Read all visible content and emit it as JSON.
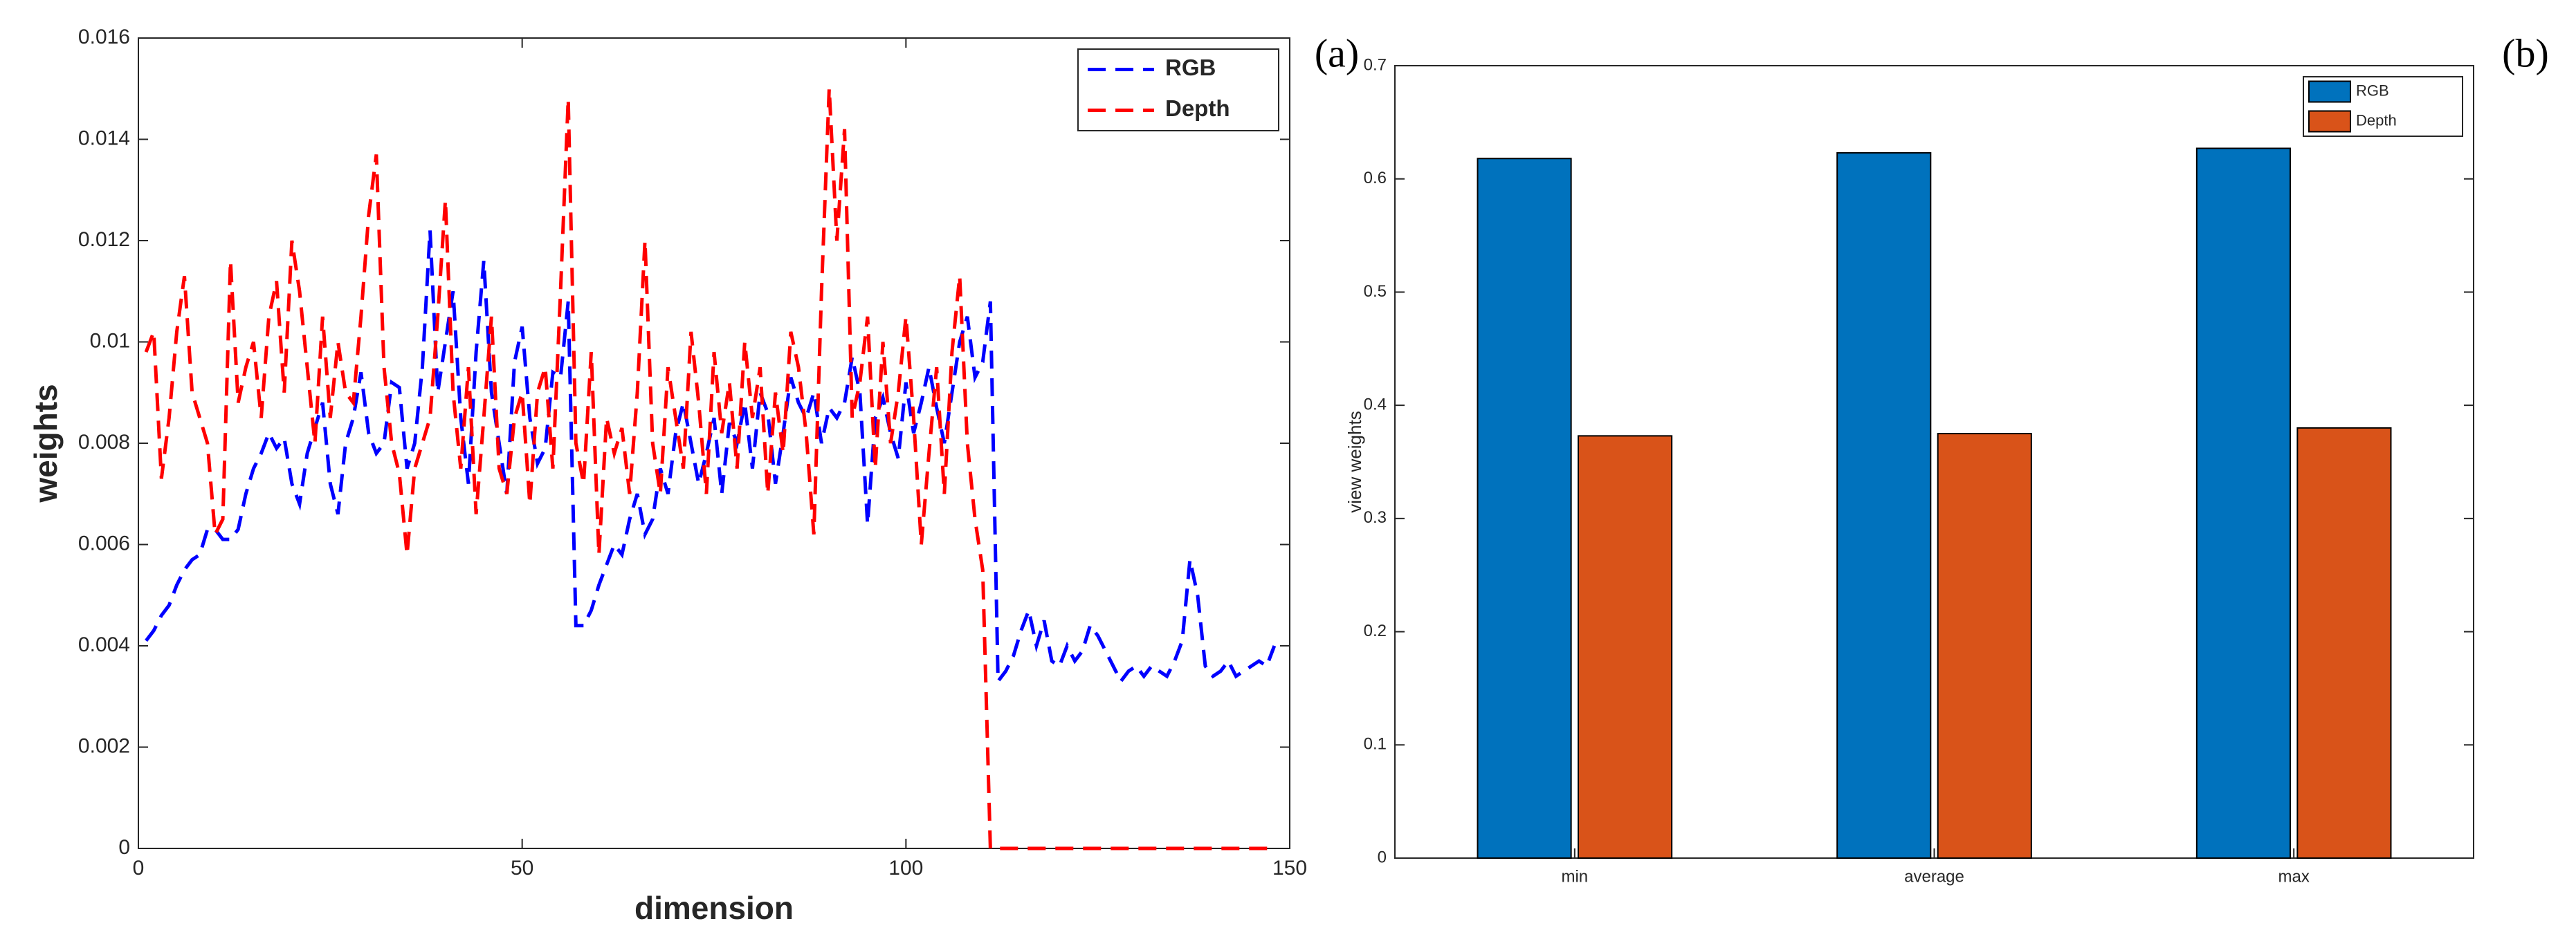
{
  "chart_data": [
    {
      "type": "line",
      "panel_label": "(a)",
      "xlabel": "dimension",
      "ylabel": "weights",
      "x": [
        1,
        2,
        3,
        4,
        5,
        6,
        7,
        8,
        9,
        10,
        11,
        12,
        13,
        14,
        15,
        16,
        17,
        18,
        19,
        20,
        21,
        22,
        23,
        24,
        25,
        26,
        27,
        28,
        29,
        30,
        31,
        32,
        33,
        34,
        35,
        36,
        37,
        38,
        39,
        40,
        41,
        42,
        43,
        44,
        45,
        46,
        47,
        48,
        49,
        50,
        51,
        52,
        53,
        54,
        55,
        56,
        57,
        58,
        59,
        60,
        61,
        62,
        63,
        64,
        65,
        66,
        67,
        68,
        69,
        70,
        71,
        72,
        73,
        74,
        75,
        76,
        77,
        78,
        79,
        80,
        81,
        82,
        83,
        84,
        85,
        86,
        87,
        88,
        89,
        90,
        91,
        92,
        93,
        94,
        95,
        96,
        97,
        98,
        99,
        100,
        101,
        102,
        103,
        104,
        105,
        106,
        107,
        108,
        109,
        110,
        111,
        112,
        113,
        114,
        115,
        116,
        117,
        118,
        119,
        120,
        121,
        122,
        123,
        124,
        125,
        126,
        127,
        128,
        129,
        130,
        131,
        132,
        133,
        134,
        135,
        136,
        137,
        138,
        139,
        140,
        141,
        142,
        143,
        144,
        145,
        146,
        147,
        148
      ],
      "series": [
        {
          "name": "RGB",
          "color": "#0000ff",
          "values": [
            0.0041,
            0.0043,
            0.0046,
            0.0048,
            0.0052,
            0.0055,
            0.0057,
            0.0058,
            0.0063,
            0.0063,
            0.0061,
            0.0061,
            0.0063,
            0.007,
            0.0075,
            0.0078,
            0.0082,
            0.0079,
            0.0081,
            0.0072,
            0.0068,
            0.0078,
            0.0083,
            0.0088,
            0.0072,
            0.0066,
            0.008,
            0.0085,
            0.0094,
            0.0082,
            0.0078,
            0.008,
            0.0092,
            0.0091,
            0.0075,
            0.008,
            0.0095,
            0.0122,
            0.009,
            0.01,
            0.011,
            0.0085,
            0.0072,
            0.0098,
            0.0116,
            0.009,
            0.008,
            0.007,
            0.0096,
            0.0103,
            0.0085,
            0.0076,
            0.0079,
            0.0094,
            0.0093,
            0.0108,
            0.0044,
            0.0044,
            0.0047,
            0.0052,
            0.0056,
            0.006,
            0.0058,
            0.0065,
            0.007,
            0.0062,
            0.0065,
            0.0075,
            0.007,
            0.0082,
            0.0088,
            0.008,
            0.0072,
            0.0078,
            0.0085,
            0.007,
            0.0084,
            0.008,
            0.0088,
            0.0075,
            0.009,
            0.0086,
            0.0072,
            0.0082,
            0.0093,
            0.0088,
            0.0085,
            0.009,
            0.008,
            0.0087,
            0.0085,
            0.0088,
            0.0097,
            0.009,
            0.0064,
            0.0085,
            0.0089,
            0.0082,
            0.0077,
            0.0092,
            0.0082,
            0.0088,
            0.0095,
            0.0087,
            0.008,
            0.009,
            0.01,
            0.0105,
            0.0093,
            0.0096,
            0.0108,
            0.0033,
            0.0035,
            0.0038,
            0.0043,
            0.0047,
            0.004,
            0.0045,
            0.0037,
            0.0036,
            0.004,
            0.0037,
            0.0039,
            0.0044,
            0.0042,
            0.0039,
            0.0036,
            0.0033,
            0.0035,
            0.0036,
            0.0034,
            0.0036,
            0.0035,
            0.0034,
            0.0037,
            0.0041,
            0.0057,
            0.005,
            0.0036,
            0.0034,
            0.0035,
            0.0037,
            0.0034,
            0.0035,
            0.0036,
            0.0037,
            0.0036,
            0.004
          ]
        },
        {
          "name": "Depth",
          "color": "#ff0000",
          "values": [
            0.0098,
            0.0102,
            0.0073,
            0.0085,
            0.0102,
            0.0113,
            0.009,
            0.0085,
            0.008,
            0.0062,
            0.0065,
            0.0116,
            0.0088,
            0.0095,
            0.01,
            0.0085,
            0.0105,
            0.0112,
            0.009,
            0.012,
            0.011,
            0.0095,
            0.008,
            0.0105,
            0.0085,
            0.01,
            0.009,
            0.0088,
            0.0105,
            0.0125,
            0.0137,
            0.0095,
            0.008,
            0.0074,
            0.0058,
            0.0075,
            0.008,
            0.0085,
            0.0105,
            0.0128,
            0.009,
            0.0075,
            0.0095,
            0.0066,
            0.0085,
            0.0105,
            0.0075,
            0.007,
            0.0085,
            0.009,
            0.0068,
            0.009,
            0.0095,
            0.0075,
            0.011,
            0.0148,
            0.008,
            0.0072,
            0.0098,
            0.0058,
            0.0085,
            0.0078,
            0.0083,
            0.007,
            0.009,
            0.012,
            0.008,
            0.007,
            0.0095,
            0.0085,
            0.0075,
            0.0102,
            0.0088,
            0.007,
            0.0098,
            0.0082,
            0.0092,
            0.0075,
            0.01,
            0.0085,
            0.0095,
            0.007,
            0.009,
            0.0078,
            0.0102,
            0.0095,
            0.0082,
            0.0062,
            0.011,
            0.015,
            0.012,
            0.0142,
            0.0085,
            0.0092,
            0.0105,
            0.0075,
            0.01,
            0.008,
            0.009,
            0.0105,
            0.0085,
            0.006,
            0.0078,
            0.0095,
            0.007,
            0.0098,
            0.0113,
            0.008,
            0.0065,
            0.0055,
            0,
            0,
            0,
            0,
            0,
            0,
            0,
            0,
            0,
            0,
            0,
            0,
            0,
            0,
            0,
            0,
            0,
            0,
            0,
            0,
            0,
            0,
            0,
            0,
            0,
            0,
            0,
            0,
            0,
            0,
            0,
            0,
            0,
            0,
            0,
            0,
            0,
            0
          ]
        }
      ],
      "xlim": [
        0,
        150
      ],
      "xticks": [
        0,
        50,
        100,
        150
      ],
      "ylim": [
        0,
        0.016
      ],
      "yticks": [
        0,
        0.002,
        0.004,
        0.006,
        0.008,
        0.01,
        0.012,
        0.014,
        0.016
      ],
      "legend": "upper right"
    },
    {
      "type": "bar",
      "panel_label": "(b)",
      "ylabel": "view weights",
      "categories": [
        "min",
        "average",
        "max"
      ],
      "series": [
        {
          "name": "RGB",
          "color": "#0072bd",
          "values": [
            0.618,
            0.623,
            0.627
          ]
        },
        {
          "name": "Depth",
          "color": "#d95319",
          "values": [
            0.373,
            0.375,
            0.38
          ]
        }
      ],
      "ylim": [
        0,
        0.7
      ],
      "yticks": [
        0,
        0.1,
        0.2,
        0.3,
        0.4,
        0.5,
        0.6,
        0.7
      ],
      "legend": "upper right"
    }
  ]
}
